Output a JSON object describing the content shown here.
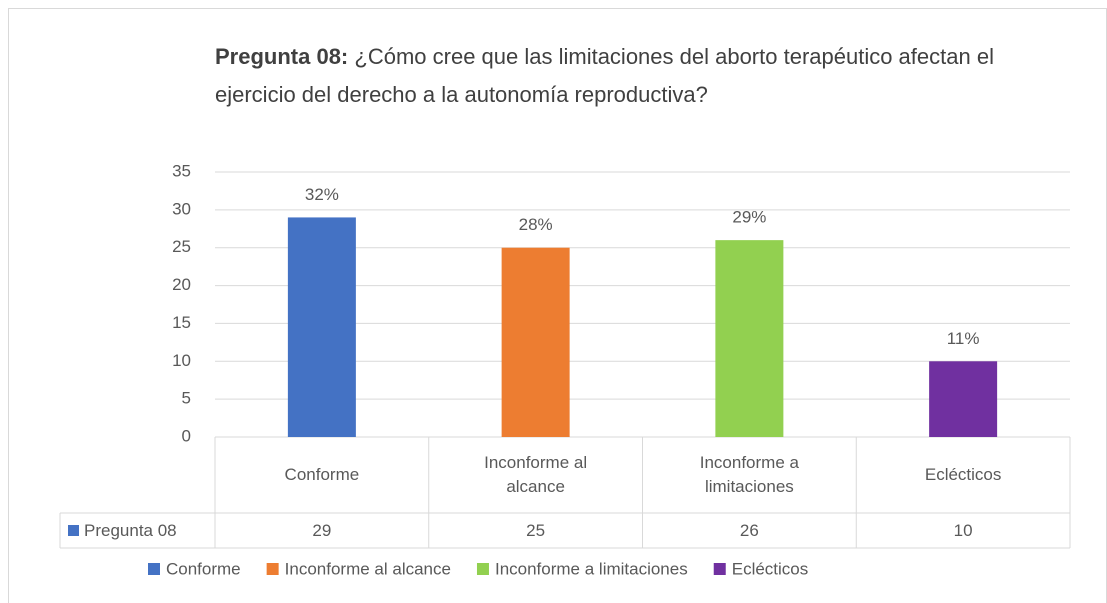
{
  "chart_data": {
    "type": "bar",
    "title_bold": "Pregunta 08:",
    "title": "¿Cómo cree que las limitaciones del aborto terapéutico afectan el ejercicio del derecho a la autonomía reproductiva?",
    "categories": [
      "Conforme",
      "Inconforme al alcance",
      "Inconforme a limitaciones",
      "Eclécticos"
    ],
    "series_name": "Pregunta 08",
    "series_color": "#4472c4",
    "values": [
      29,
      25,
      26,
      10
    ],
    "value_labels": [
      "32%",
      "28%",
      "29%",
      "11%"
    ],
    "colors": [
      "#4472c4",
      "#ed7d31",
      "#92d050",
      "#7030a0"
    ],
    "ylim": [
      0,
      35
    ],
    "yticks": [
      0,
      5,
      10,
      15,
      20,
      25,
      30,
      35
    ],
    "grid": true,
    "legend": "bottom"
  }
}
